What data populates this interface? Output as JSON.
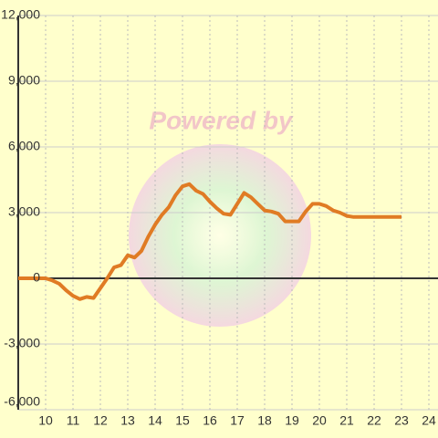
{
  "chart_data": {
    "type": "line",
    "watermark": "Powered by",
    "x": [
      9,
      9.25,
      9.5,
      9.75,
      10,
      10.25,
      10.5,
      10.75,
      11,
      11.25,
      11.5,
      11.75,
      12,
      12.25,
      12.5,
      12.75,
      13,
      13.25,
      13.5,
      13.75,
      14,
      14.25,
      14.5,
      14.75,
      15,
      15.25,
      15.5,
      15.75,
      16,
      16.25,
      16.5,
      16.75,
      17,
      17.25,
      17.5,
      17.75,
      18,
      18.25,
      18.5,
      18.75,
      19,
      19.25,
      19.5,
      19.75,
      20,
      20.25,
      20.5,
      20.75,
      21,
      21.25,
      21.5,
      21.75,
      22,
      22.25,
      22.5,
      22.75,
      23
    ],
    "series": [
      {
        "color": "#e07b24",
        "values": [
          0,
          0,
          0,
          0,
          0,
          -100,
          -250,
          -550,
          -800,
          -950,
          -850,
          -900,
          -450,
          0,
          500,
          600,
          1050,
          950,
          1250,
          1900,
          2450,
          2900,
          3250,
          3800,
          4200,
          4300,
          4000,
          3850,
          3500,
          3200,
          2950,
          2900,
          3400,
          3900,
          3700,
          3400,
          3100,
          3050,
          2950,
          2600,
          2600,
          2600,
          3050,
          3400,
          3400,
          3300,
          3100,
          3000,
          2850,
          2800,
          2800,
          2800,
          2800,
          2800,
          2800,
          2800,
          2800
        ]
      }
    ],
    "xlim": [
      9,
      24
    ],
    "xticks": [
      10,
      11,
      12,
      13,
      14,
      15,
      16,
      17,
      18,
      19,
      20,
      21,
      22,
      23,
      24
    ],
    "ylim": [
      -6000,
      12000
    ],
    "yticks": [
      {
        "value": -6000,
        "label": "-6,000"
      },
      {
        "value": -3000,
        "label": "-3,000"
      },
      0,
      {
        "value": 3000,
        "label": "3,000"
      },
      {
        "value": 6000,
        "label": "6,000"
      },
      {
        "value": 9000,
        "label": "9,000"
      },
      {
        "value": 12000,
        "label": "12,000"
      }
    ],
    "grid": true
  }
}
